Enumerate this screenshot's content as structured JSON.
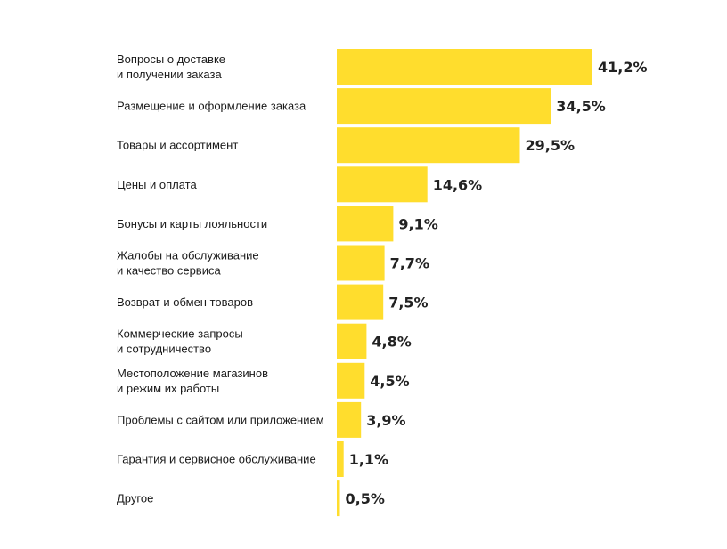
{
  "chart_data": {
    "type": "bar",
    "orientation": "horizontal",
    "categories": [
      [
        "Вопросы о доставке",
        "и получении заказа"
      ],
      [
        "Размещение и оформление заказа"
      ],
      [
        "Товары и ассортимент"
      ],
      [
        "Цены и оплата"
      ],
      [
        "Бонусы и карты лояльности"
      ],
      [
        "Жалобы на обслуживание",
        "и качество сервиса"
      ],
      [
        "Возврат и обмен товаров"
      ],
      [
        "Коммерческие запросы",
        "и сотрудничество"
      ],
      [
        "Местоположение магазинов",
        "и режим их работы"
      ],
      [
        "Проблемы с сайтом или приложением"
      ],
      [
        "Гарантия и сервисное обслуживание"
      ],
      [
        "Другое"
      ]
    ],
    "values": [
      41.2,
      34.5,
      29.5,
      14.6,
      9.1,
      7.7,
      7.5,
      4.8,
      4.5,
      3.9,
      1.1,
      0.5
    ],
    "value_labels": [
      "41,2%",
      "34,5%",
      "29,5%",
      "14,6%",
      "9,1%",
      "7,7%",
      "7,5%",
      "4,8%",
      "4,5%",
      "3,9%",
      "1,1%",
      "0,5%"
    ],
    "unit": "%",
    "xlim": [
      0,
      41.2
    ],
    "grid": false,
    "legend": "none",
    "bar_color": "#FFDD2D",
    "text_color": "#1A1A1A"
  }
}
